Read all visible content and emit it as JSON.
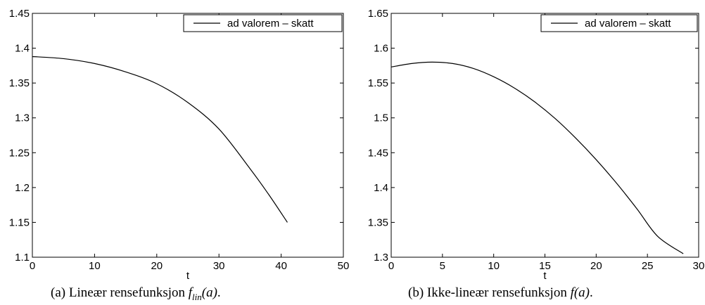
{
  "chart_data": [
    {
      "type": "line",
      "xlabel": "t",
      "ylabel": "",
      "xlim": [
        0,
        50
      ],
      "ylim": [
        1.1,
        1.45
      ],
      "xticks": [
        "0",
        "10",
        "20",
        "30",
        "40",
        "50"
      ],
      "yticks": [
        "1.1",
        "1.15",
        "1.2",
        "1.25",
        "1.3",
        "1.35",
        "1.4",
        "1.45"
      ],
      "grid": false,
      "legend_position": "top-right",
      "series": [
        {
          "name": "ad valorem – skatt",
          "color": "#000000",
          "x": [
            0,
            5,
            10,
            15,
            20,
            25,
            30,
            35,
            38,
            41
          ],
          "y": [
            1.388,
            1.385,
            1.378,
            1.366,
            1.349,
            1.322,
            1.284,
            1.227,
            1.19,
            1.15
          ]
        }
      ],
      "caption": {
        "prefix": "(a) Lineær rensefunksjon ",
        "math": "f",
        "math_sub": "lin",
        "math_arg": "(a)",
        "suffix": "."
      }
    },
    {
      "type": "line",
      "xlabel": "t",
      "ylabel": "",
      "xlim": [
        0,
        30
      ],
      "ylim": [
        1.3,
        1.65
      ],
      "xticks": [
        "0",
        "5",
        "10",
        "15",
        "20",
        "25",
        "30"
      ],
      "yticks": [
        "1.3",
        "1.35",
        "1.4",
        "1.45",
        "1.5",
        "1.55",
        "1.6",
        "1.65"
      ],
      "grid": false,
      "legend_position": "top-right",
      "series": [
        {
          "name": "ad valorem – skatt",
          "color": "#000000",
          "x": [
            0,
            2,
            4,
            6,
            8,
            10,
            12,
            14,
            16,
            18,
            20,
            22,
            24,
            26,
            28.5
          ],
          "y": [
            1.573,
            1.578,
            1.58,
            1.578,
            1.571,
            1.559,
            1.543,
            1.523,
            1.499,
            1.471,
            1.44,
            1.406,
            1.369,
            1.33,
            1.305
          ]
        }
      ],
      "caption": {
        "prefix": "(b) Ikke-lineær rensefunksjon ",
        "math": "f",
        "math_sub": "",
        "math_arg": "(a)",
        "suffix": "."
      }
    }
  ]
}
